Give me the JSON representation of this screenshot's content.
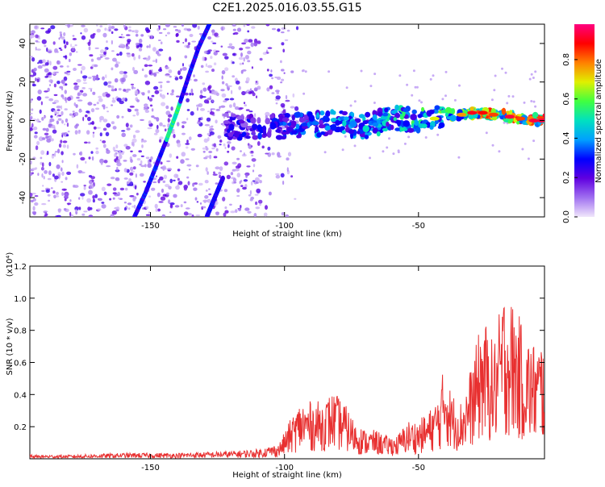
{
  "title": "C2E1.2025.016.03.55.G15",
  "colorbar_label": "Normalized spectral amplitude",
  "colorbar_ticks": [
    "0.0",
    "0.2",
    "0.4",
    "0.6",
    "0.8"
  ],
  "chart_data": [
    {
      "type": "heatmap",
      "xlabel": "Height of straight line (km)",
      "ylabel": "Frequency (Hz)",
      "xlim": [
        -195,
        -3
      ],
      "ylim": [
        -50,
        50
      ],
      "xticks": [
        -150,
        -100,
        -50
      ],
      "yticks": [
        -40,
        -20,
        0,
        20,
        40
      ],
      "colorscale": {
        "range": [
          0.0,
          0.98
        ],
        "stops": [
          "#f0e6fb",
          "#a070f0",
          "#6000e0",
          "#0000ff",
          "#00a0ff",
          "#00e0c0",
          "#40ff40",
          "#e0f000",
          "#ff8000",
          "#ff0000",
          "#ff0080"
        ]
      },
      "features": [
        {
          "name": "main trace",
          "x": [
            -122,
            -110,
            -100,
            -90,
            -80,
            -70,
            -60,
            -50,
            -40,
            -30,
            -20,
            -10,
            -3
          ],
          "y": [
            -3,
            -4,
            -3,
            -2,
            -1,
            -3,
            1,
            0,
            3,
            4,
            3,
            1,
            0
          ],
          "amplitude": [
            0.25,
            0.3,
            0.35,
            0.4,
            0.45,
            0.45,
            0.5,
            0.55,
            0.6,
            0.75,
            0.85,
            0.9,
            0.95
          ]
        },
        {
          "name": "diagonal streak 1",
          "x": [
            -156,
            -152,
            -148,
            -144,
            -140,
            -136,
            -132,
            -128
          ],
          "y": [
            -50,
            -38,
            -24,
            -10,
            5,
            22,
            38,
            50
          ]
        },
        {
          "name": "diagonal streak 2",
          "x": [
            -129,
            -126,
            -123
          ],
          "y": [
            -50,
            -40,
            -30
          ]
        }
      ]
    },
    {
      "type": "line",
      "xlabel": "Height of straight line (km)",
      "ylabel": "SNR (10 * v/v)",
      "y_multiplier": "(x10⁴)",
      "xlim": [
        -195,
        -3
      ],
      "ylim": [
        0,
        1.2
      ],
      "xticks": [
        -150,
        -100,
        -50
      ],
      "yticks": [
        "0.2",
        "0.4",
        "0.6",
        "0.8",
        "1.0",
        "1.2"
      ],
      "line_color": "#e83030",
      "series": [
        {
          "x": [
            -195,
            -180,
            -160,
            -140,
            -120,
            -110,
            -102,
            -98,
            -94,
            -90,
            -86,
            -82,
            -78,
            -74,
            -70,
            -66,
            -62,
            -58,
            -54,
            -50,
            -46,
            -42,
            -40,
            -38,
            -34,
            -30,
            -26,
            -22,
            -18,
            -14,
            -10,
            -6,
            -3
          ],
          "y": [
            0.02,
            0.02,
            0.03,
            0.03,
            0.04,
            0.05,
            0.08,
            0.2,
            0.3,
            0.3,
            0.3,
            0.35,
            0.3,
            0.2,
            0.15,
            0.15,
            0.12,
            0.12,
            0.2,
            0.2,
            0.25,
            0.35,
            0.55,
            0.35,
            0.3,
            0.5,
            0.75,
            0.6,
            0.9,
            0.8,
            0.65,
            0.6,
            0.65
          ]
        }
      ]
    }
  ]
}
